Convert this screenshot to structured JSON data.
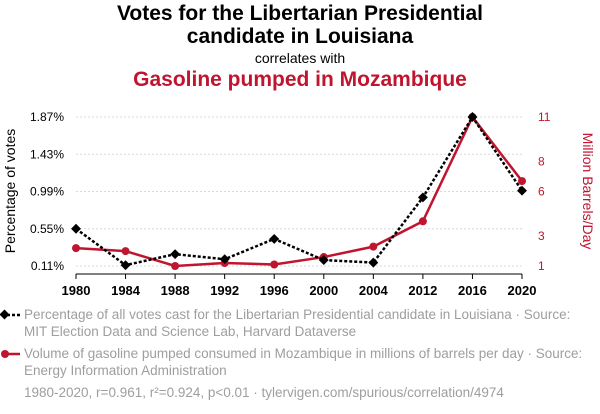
{
  "title_line1": "Votes for the Libertarian Presidential",
  "title_line2": "candidate in Louisiana",
  "correlates_with": "correlates with",
  "title_line3": "Gasoline pumped in Mozambique",
  "colors": {
    "series1": "#000000",
    "series2": "#c0152f",
    "grid": "#d8d8d8",
    "muted": "#9e9e9e"
  },
  "legend": {
    "series1_text": "Percentage of all votes cast for the Libertarian Presidential candidate in Louisiana · Source: MIT Election Data and Science Lab, Harvard Dataverse",
    "series2_text": "Volume of gasoline pumped consumed in Mozambique in millions of barrels per day · Source: Energy Information Administration"
  },
  "footer": "1980-2020, r=0.961, r²=0.924, p<0.01 · tylervigen.com/spurious/correlation/4974",
  "chart_data": {
    "type": "line",
    "categories": [
      "1980",
      "1984",
      "1988",
      "1992",
      "1996",
      "2000",
      "2004",
      "2012",
      "2016",
      "2020"
    ],
    "series": [
      {
        "name": "Percentage of all votes cast for the Libertarian Presidential candidate in Louisiana",
        "axis": "left",
        "values": [
          0.55,
          0.12,
          0.25,
          0.19,
          0.43,
          0.18,
          0.15,
          0.92,
          1.87,
          1.0
        ]
      },
      {
        "name": "Volume of gasoline pumped consumed in Mozambique in millions of barrels per day",
        "axis": "right",
        "values": [
          2.2,
          2.0,
          1.0,
          1.2,
          1.1,
          1.6,
          2.3,
          4.0,
          11.0,
          6.7
        ]
      }
    ],
    "ylabel": "Percentage of votes",
    "y2label": "Million Barrels/Day",
    "yticks": [
      "0.11%",
      "0.55%",
      "0.99%",
      "1.43%",
      "1.87%"
    ],
    "yticks_values": [
      0.11,
      0.55,
      0.99,
      1.43,
      1.87
    ],
    "y2ticks": [
      "1",
      "3",
      "6",
      "8",
      "11"
    ],
    "y2ticks_values": [
      1,
      3,
      6,
      8,
      11
    ],
    "ylim": [
      0.11,
      1.87
    ],
    "y2lim": [
      1,
      11
    ],
    "grid": true
  }
}
